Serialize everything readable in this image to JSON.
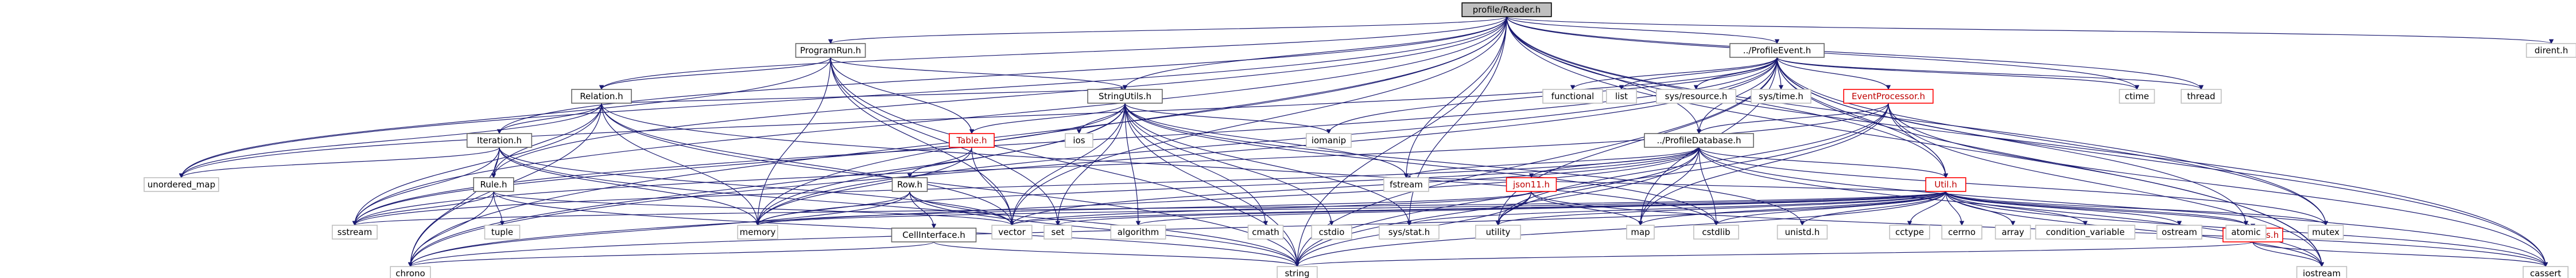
{
  "graph": {
    "root": "profile/Reader.h",
    "colors": {
      "edge": "#191970",
      "root_fill": "#bfbfbf",
      "red_border": "#ff0000",
      "box_border": "#bfbfbf"
    },
    "nodes": [
      {
        "id": "reader",
        "label": "profile/Reader.h",
        "kind": "root"
      },
      {
        "id": "programrun",
        "label": "ProgramRun.h",
        "kind": "file"
      },
      {
        "id": "profileevent",
        "label": "../ProfileEvent.h",
        "kind": "file"
      },
      {
        "id": "relation",
        "label": "Relation.h",
        "kind": "file"
      },
      {
        "id": "stringutils",
        "label": "StringUtils.h",
        "kind": "file"
      },
      {
        "id": "eventprocessor",
        "label": "EventProcessor.h",
        "kind": "red"
      },
      {
        "id": "profiledatabase",
        "label": "../ProfileDatabase.h",
        "kind": "file"
      },
      {
        "id": "iteration",
        "label": "Iteration.h",
        "kind": "file"
      },
      {
        "id": "table",
        "label": "Table.h",
        "kind": "red"
      },
      {
        "id": "row",
        "label": "Row.h",
        "kind": "file"
      },
      {
        "id": "rule",
        "label": "Rule.h",
        "kind": "file"
      },
      {
        "id": "json11",
        "label": "json11.h",
        "kind": "red"
      },
      {
        "id": "util",
        "label": "Util.h",
        "kind": "red"
      },
      {
        "id": "ramtypes",
        "label": "RamTypes.h",
        "kind": "red"
      },
      {
        "id": "cellinterface",
        "label": "CellInterface.h",
        "kind": "file"
      },
      {
        "id": "dirent",
        "label": "dirent.h",
        "kind": "system"
      },
      {
        "id": "ctime",
        "label": "ctime",
        "kind": "system"
      },
      {
        "id": "thread",
        "label": "thread",
        "kind": "system"
      },
      {
        "id": "functional",
        "label": "functional",
        "kind": "system"
      },
      {
        "id": "list",
        "label": "list",
        "kind": "system"
      },
      {
        "id": "sysresource",
        "label": "sys/resource.h",
        "kind": "system"
      },
      {
        "id": "systime",
        "label": "sys/time.h",
        "kind": "system"
      },
      {
        "id": "unordered_map",
        "label": "unordered_map",
        "kind": "system"
      },
      {
        "id": "ios",
        "label": "ios",
        "kind": "system"
      },
      {
        "id": "iomanip",
        "label": "iomanip",
        "kind": "system"
      },
      {
        "id": "fstream",
        "label": "fstream",
        "kind": "system"
      },
      {
        "id": "sstream",
        "label": "sstream",
        "kind": "system"
      },
      {
        "id": "memory",
        "label": "memory",
        "kind": "system"
      },
      {
        "id": "tuple",
        "label": "tuple",
        "kind": "system"
      },
      {
        "id": "vector",
        "label": "vector",
        "kind": "system"
      },
      {
        "id": "algorithm",
        "label": "algorithm",
        "kind": "system"
      },
      {
        "id": "cmath",
        "label": "cmath",
        "kind": "system"
      },
      {
        "id": "cstdio",
        "label": "cstdio",
        "kind": "system"
      },
      {
        "id": "sysstat",
        "label": "sys/stat.h",
        "kind": "system"
      },
      {
        "id": "set",
        "label": "set",
        "kind": "system"
      },
      {
        "id": "utility",
        "label": "utility",
        "kind": "system"
      },
      {
        "id": "map",
        "label": "map",
        "kind": "system"
      },
      {
        "id": "cstdlib",
        "label": "cstdlib",
        "kind": "system"
      },
      {
        "id": "unistd",
        "label": "unistd.h",
        "kind": "system"
      },
      {
        "id": "cctype",
        "label": "cctype",
        "kind": "system"
      },
      {
        "id": "cerrno",
        "label": "cerrno",
        "kind": "system"
      },
      {
        "id": "array",
        "label": "array",
        "kind": "system"
      },
      {
        "id": "condvar",
        "label": "condition_variable",
        "kind": "system"
      },
      {
        "id": "ostream",
        "label": "ostream",
        "kind": "system"
      },
      {
        "id": "atomic",
        "label": "atomic",
        "kind": "system"
      },
      {
        "id": "mutex",
        "label": "mutex",
        "kind": "system"
      },
      {
        "id": "cassert",
        "label": "cassert",
        "kind": "system"
      },
      {
        "id": "chrono",
        "label": "chrono",
        "kind": "system"
      },
      {
        "id": "string",
        "label": "string",
        "kind": "system"
      },
      {
        "id": "iostream",
        "label": "iostream",
        "kind": "system"
      }
    ],
    "edges": [
      [
        "reader",
        "programrun"
      ],
      [
        "reader",
        "profileevent"
      ],
      [
        "reader",
        "relation"
      ],
      [
        "reader",
        "stringutils"
      ],
      [
        "reader",
        "iteration"
      ],
      [
        "reader",
        "rule"
      ],
      [
        "reader",
        "dirent"
      ],
      [
        "reader",
        "ctime"
      ],
      [
        "reader",
        "thread"
      ],
      [
        "reader",
        "unordered_map"
      ],
      [
        "reader",
        "memory"
      ],
      [
        "reader",
        "chrono"
      ],
      [
        "reader",
        "cassert"
      ],
      [
        "reader",
        "iostream"
      ],
      [
        "reader",
        "string"
      ],
      [
        "reader",
        "vector"
      ],
      [
        "reader",
        "sstream"
      ],
      [
        "reader",
        "fstream"
      ],
      [
        "reader",
        "sysstat"
      ],
      [
        "reader",
        "profiledatabase"
      ],
      [
        "reader",
        "util"
      ],
      [
        "reader",
        "mutex"
      ],
      [
        "programrun",
        "relation"
      ],
      [
        "programrun",
        "stringutils"
      ],
      [
        "programrun",
        "table"
      ],
      [
        "programrun",
        "memory"
      ],
      [
        "programrun",
        "string"
      ],
      [
        "programrun",
        "set"
      ],
      [
        "programrun",
        "unordered_map"
      ],
      [
        "programrun",
        "vector"
      ],
      [
        "profileevent",
        "profiledatabase"
      ],
      [
        "profileevent",
        "eventprocessor"
      ],
      [
        "profileevent",
        "ctime"
      ],
      [
        "profileevent",
        "thread"
      ],
      [
        "profileevent",
        "functional"
      ],
      [
        "profileevent",
        "list"
      ],
      [
        "profileevent",
        "sysresource"
      ],
      [
        "profileevent",
        "systime"
      ],
      [
        "profileevent",
        "util"
      ],
      [
        "profileevent",
        "atomic"
      ],
      [
        "profileevent",
        "mutex"
      ],
      [
        "profileevent",
        "cassert"
      ],
      [
        "profileevent",
        "chrono"
      ],
      [
        "profileevent",
        "memory"
      ],
      [
        "profileevent",
        "string"
      ],
      [
        "profileevent",
        "iostream"
      ],
      [
        "profileevent",
        "iomanip"
      ],
      [
        "profileevent",
        "unordered_map"
      ],
      [
        "profileevent",
        "sstream"
      ],
      [
        "profileevent",
        "utility"
      ],
      [
        "profileevent",
        "map"
      ],
      [
        "relation",
        "iteration"
      ],
      [
        "relation",
        "rule"
      ],
      [
        "relation",
        "stringutils"
      ],
      [
        "relation",
        "chrono"
      ],
      [
        "relation",
        "memory"
      ],
      [
        "relation",
        "string"
      ],
      [
        "relation",
        "vector"
      ],
      [
        "relation",
        "unordered_map"
      ],
      [
        "relation",
        "sstream"
      ],
      [
        "relation",
        "cstdlib"
      ],
      [
        "stringutils",
        "table"
      ],
      [
        "stringutils",
        "ios"
      ],
      [
        "stringutils",
        "iomanip"
      ],
      [
        "stringutils",
        "fstream"
      ],
      [
        "stringutils",
        "sstream"
      ],
      [
        "stringutils",
        "memory"
      ],
      [
        "stringutils",
        "vector"
      ],
      [
        "stringutils",
        "algorithm"
      ],
      [
        "stringutils",
        "cmath"
      ],
      [
        "stringutils",
        "cstdio"
      ],
      [
        "stringutils",
        "sysstat"
      ],
      [
        "stringutils",
        "string"
      ],
      [
        "stringutils",
        "set"
      ],
      [
        "stringutils",
        "cstdlib"
      ],
      [
        "stringutils",
        "unistd"
      ],
      [
        "stringutils",
        "chrono"
      ],
      [
        "eventprocessor",
        "profiledatabase"
      ],
      [
        "eventprocessor",
        "util"
      ],
      [
        "eventprocessor",
        "cassert"
      ],
      [
        "eventprocessor",
        "string"
      ],
      [
        "eventprocessor",
        "map"
      ],
      [
        "eventprocessor",
        "utility"
      ],
      [
        "eventprocessor",
        "iostream"
      ],
      [
        "eventprocessor",
        "sstream"
      ],
      [
        "profiledatabase",
        "json11"
      ],
      [
        "profiledatabase",
        "util"
      ],
      [
        "profiledatabase",
        "chrono"
      ],
      [
        "profiledatabase",
        "memory"
      ],
      [
        "profiledatabase",
        "string"
      ],
      [
        "profiledatabase",
        "vector"
      ],
      [
        "profiledatabase",
        "map"
      ],
      [
        "profiledatabase",
        "mutex"
      ],
      [
        "profiledatabase",
        "cassert"
      ],
      [
        "profiledatabase",
        "utility"
      ],
      [
        "profiledatabase",
        "fstream"
      ],
      [
        "profiledatabase",
        "sstream"
      ],
      [
        "profiledatabase",
        "iostream"
      ],
      [
        "profiledatabase",
        "cstdlib"
      ],
      [
        "iteration",
        "rule"
      ],
      [
        "iteration",
        "unordered_map"
      ],
      [
        "iteration",
        "memory"
      ],
      [
        "iteration",
        "chrono"
      ],
      [
        "iteration",
        "string"
      ],
      [
        "iteration",
        "vector"
      ],
      [
        "iteration",
        "sstream"
      ],
      [
        "table",
        "row"
      ],
      [
        "table",
        "vector"
      ],
      [
        "table",
        "memory"
      ],
      [
        "row",
        "cellinterface"
      ],
      [
        "row",
        "chrono"
      ],
      [
        "row",
        "memory"
      ],
      [
        "row",
        "vector"
      ],
      [
        "row",
        "string"
      ],
      [
        "rule",
        "sstream"
      ],
      [
        "rule",
        "tuple"
      ],
      [
        "rule",
        "string"
      ],
      [
        "rule",
        "chrono"
      ],
      [
        "rule",
        "vector"
      ],
      [
        "json11",
        "string"
      ],
      [
        "json11",
        "vector"
      ],
      [
        "json11",
        "map"
      ],
      [
        "json11",
        "memory"
      ],
      [
        "json11",
        "initializer"
      ],
      [
        "json11",
        "cassert"
      ],
      [
        "json11",
        "utility"
      ],
      [
        "util",
        "ramtypes"
      ],
      [
        "util",
        "algorithm"
      ],
      [
        "util",
        "cctype"
      ],
      [
        "util",
        "cerrno"
      ],
      [
        "util",
        "array"
      ],
      [
        "util",
        "condvar"
      ],
      [
        "util",
        "ostream"
      ],
      [
        "util",
        "atomic"
      ],
      [
        "util",
        "mutex"
      ],
      [
        "util",
        "iostream"
      ],
      [
        "util",
        "cassert"
      ],
      [
        "util",
        "memory"
      ],
      [
        "util",
        "set"
      ],
      [
        "util",
        "string"
      ],
      [
        "util",
        "utility"
      ],
      [
        "util",
        "vector"
      ],
      [
        "util",
        "map"
      ],
      [
        "util",
        "cstdlib"
      ],
      [
        "util",
        "unistd"
      ],
      [
        "util",
        "sysstat"
      ],
      [
        "util",
        "fstream"
      ],
      [
        "util",
        "sstream"
      ],
      [
        "util",
        "chrono"
      ],
      [
        "ramtypes",
        "iostream"
      ],
      [
        "ramtypes",
        "cassert"
      ],
      [
        "ramtypes",
        "string"
      ],
      [
        "cellinterface",
        "chrono"
      ],
      [
        "cellinterface",
        "string"
      ]
    ]
  }
}
